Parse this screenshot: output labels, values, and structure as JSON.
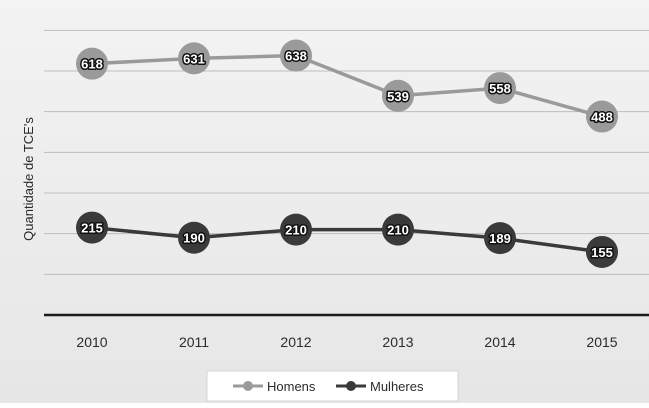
{
  "chart_data": {
    "type": "line",
    "categories": [
      "2010",
      "2011",
      "2012",
      "2013",
      "2014",
      "2015"
    ],
    "series": [
      {
        "name": "Homens",
        "values": [
          618,
          631,
          638,
          539,
          558,
          488
        ],
        "color": "#9a9a9a"
      },
      {
        "name": "Mulheres",
        "values": [
          215,
          190,
          210,
          210,
          189,
          155
        ],
        "color": "#3a3a3a"
      }
    ],
    "title": "",
    "xlabel": "",
    "ylabel": "Quantidade de TCE's",
    "ylim": [
      0,
      750
    ],
    "grid": true,
    "legend_position": "bottom-center",
    "background": "#ebebeb",
    "grid_color": "#bdbdbd",
    "axis_color": "#1a1a1a"
  }
}
